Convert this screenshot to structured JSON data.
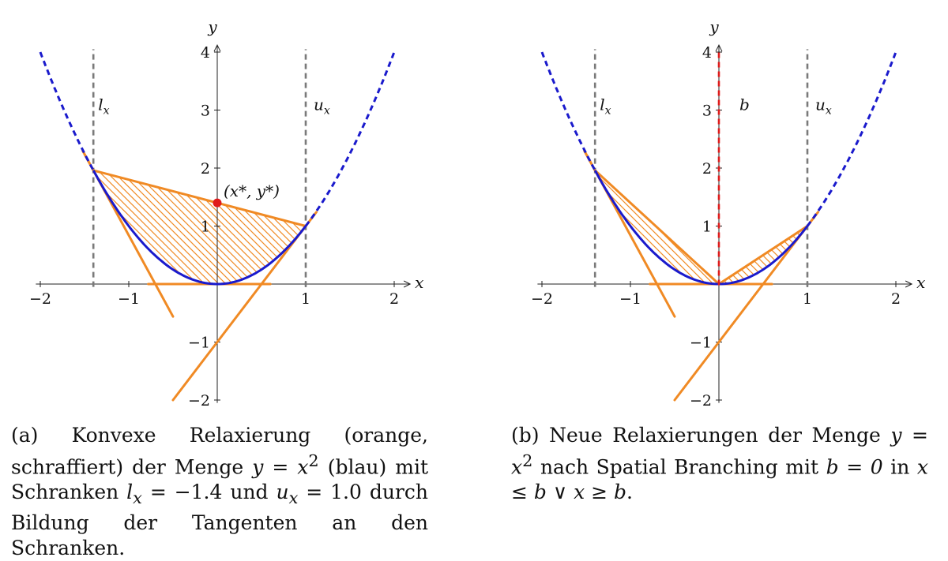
{
  "colors": {
    "curve": "#1a1acc",
    "relax": "#f08a24",
    "bound": "#7a7a7a",
    "point": "#e01b1b",
    "branch": "#e01b1b",
    "axis": "#222222"
  },
  "axes": {
    "x_label": "x",
    "y_label": "y",
    "xlim": [
      -2,
      2
    ],
    "ylim": [
      -2,
      4
    ],
    "x_ticks": [
      -2,
      -1,
      1,
      2
    ],
    "x_tick_labels": [
      "−2",
      "−1",
      "1",
      "2"
    ],
    "y_ticks": [
      -2,
      -1,
      1,
      2,
      3,
      4
    ],
    "y_tick_labels": [
      "−2",
      "−1",
      "1",
      "2",
      "3",
      "4"
    ]
  },
  "bounds": {
    "lx": -1.4,
    "ux": 1.0,
    "lx_label": "l",
    "lx_sub": "x",
    "ux_label": "u",
    "ux_sub": "x"
  },
  "panel_a": {
    "point": {
      "x": 0.0,
      "y": 1.4,
      "label": "(x*, y*)"
    },
    "caption": {
      "tag": "(a)",
      "part1": " Konvexe Relaxierung (orange, schraffiert) der Menge ",
      "set_expr": "y = x",
      "sup": "2",
      "part2": " (blau) mit Schranken ",
      "lx_expr": "l",
      "lx_sub": "x",
      "lx_val": " = −1.4",
      "and": " und ",
      "ux_expr": "u",
      "ux_sub": "x",
      "ux_val": " = 1.0",
      "part3": " durch Bildung der Tangenten an den Schranken."
    }
  },
  "panel_b": {
    "branch": {
      "x": 0.0,
      "label": "b"
    },
    "caption": {
      "tag": "(b)",
      "part1": " Neue Relaxierungen der Menge ",
      "set_expr": "y = x",
      "sup": "2",
      "part2": " nach Spatial Branching mit ",
      "b_expr": "b = 0",
      "part3": " in ",
      "cond_expr": "x ≤ b ∨ x ≥ b",
      "end": "."
    }
  }
}
